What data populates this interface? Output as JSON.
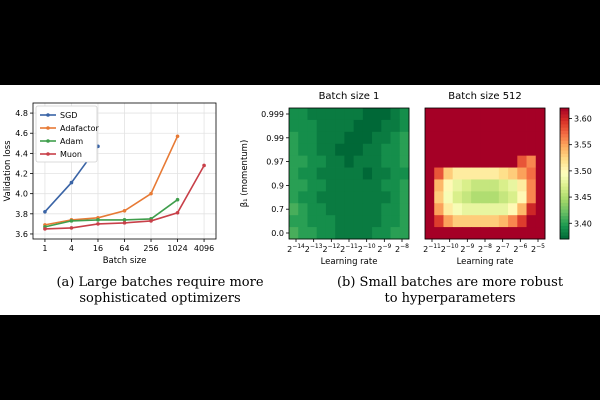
{
  "chart_data": [
    {
      "type": "line",
      "xlabel": "Batch size",
      "ylabel": "Validation loss",
      "x": [
        1,
        4,
        16,
        64,
        256,
        1024,
        4096
      ],
      "x_tick_labels": [
        "1",
        "4",
        "16",
        "64",
        "256",
        "1024",
        "4096"
      ],
      "x_scale": "log2",
      "ylim": [
        3.55,
        4.9
      ],
      "y_ticks": [
        3.6,
        3.8,
        4.0,
        4.2,
        4.4,
        4.6,
        4.8
      ],
      "y_tick_labels": [
        "3.6",
        "3.8",
        "4.0",
        "4.2",
        "4.4",
        "4.6",
        "4.8"
      ],
      "grid": true,
      "legend_position": "top-left",
      "series": [
        {
          "name": "SGD",
          "color": "#3a64a6",
          "x": [
            1,
            4,
            16
          ],
          "values": [
            3.82,
            4.11,
            4.47
          ]
        },
        {
          "name": "Adafactor",
          "color": "#e77a35",
          "x": [
            1,
            4,
            16,
            64,
            256,
            1024
          ],
          "values": [
            3.69,
            3.74,
            3.76,
            3.83,
            4.0,
            4.57
          ]
        },
        {
          "name": "Adam",
          "color": "#3f9e4c",
          "x": [
            1,
            4,
            16,
            64,
            256,
            1024
          ],
          "values": [
            3.67,
            3.73,
            3.74,
            3.74,
            3.75,
            3.94
          ]
        },
        {
          "name": "Muon",
          "color": "#c84049",
          "x": [
            1,
            4,
            16,
            64,
            256,
            1024,
            4096
          ],
          "values": [
            3.65,
            3.66,
            3.7,
            3.71,
            3.73,
            3.81,
            4.28
          ]
        }
      ]
    },
    {
      "type": "heatmap",
      "title": "Batch size 1",
      "xlabel": "Learning rate",
      "ylabel": "β₁ (momentum)",
      "x_tick_labels": [
        "-14",
        "-13",
        "-12",
        "-11",
        "-10",
        "-9",
        "-8"
      ],
      "y_tick_labels": [
        "0.999",
        "0.99",
        "0.97",
        "0.9",
        "0.7",
        "0.0"
      ],
      "values": [
        [
          3.39,
          3.39,
          3.38,
          3.38,
          3.38,
          3.38,
          3.38,
          3.38,
          3.37,
          3.37,
          3.37,
          3.38,
          3.39
        ],
        [
          3.39,
          3.39,
          3.39,
          3.38,
          3.38,
          3.38,
          3.38,
          3.37,
          3.37,
          3.37,
          3.38,
          3.38,
          3.39
        ],
        [
          3.4,
          3.39,
          3.39,
          3.38,
          3.38,
          3.38,
          3.37,
          3.37,
          3.37,
          3.38,
          3.38,
          3.39,
          3.4
        ],
        [
          3.4,
          3.39,
          3.39,
          3.38,
          3.38,
          3.37,
          3.37,
          3.37,
          3.38,
          3.38,
          3.39,
          3.39,
          3.4
        ],
        [
          3.4,
          3.4,
          3.39,
          3.39,
          3.38,
          3.38,
          3.37,
          3.38,
          3.38,
          3.38,
          3.39,
          3.39,
          3.4
        ],
        [
          3.4,
          3.39,
          3.39,
          3.38,
          3.38,
          3.38,
          3.38,
          3.38,
          3.37,
          3.38,
          3.38,
          3.39,
          3.39
        ],
        [
          3.4,
          3.4,
          3.39,
          3.39,
          3.38,
          3.38,
          3.38,
          3.38,
          3.38,
          3.38,
          3.39,
          3.39,
          3.4
        ],
        [
          3.4,
          3.39,
          3.39,
          3.38,
          3.38,
          3.38,
          3.38,
          3.38,
          3.38,
          3.38,
          3.38,
          3.39,
          3.4
        ],
        [
          3.41,
          3.4,
          3.39,
          3.39,
          3.38,
          3.38,
          3.38,
          3.38,
          3.38,
          3.38,
          3.39,
          3.39,
          3.4
        ],
        [
          3.4,
          3.4,
          3.39,
          3.39,
          3.39,
          3.38,
          3.38,
          3.38,
          3.38,
          3.38,
          3.39,
          3.39,
          3.4
        ],
        [
          3.41,
          3.4,
          3.4,
          3.39,
          3.39,
          3.38,
          3.38,
          3.38,
          3.38,
          3.39,
          3.39,
          3.4,
          3.4
        ]
      ]
    },
    {
      "type": "heatmap",
      "title": "Batch size 512",
      "xlabel": "Learning rate",
      "x_tick_labels": [
        "-11",
        "-10",
        "-9",
        "-8",
        "-7",
        "-6",
        "-5"
      ],
      "values": [
        [
          3.62,
          3.62,
          3.62,
          3.62,
          3.62,
          3.62,
          3.62,
          3.62,
          3.62,
          3.62,
          3.62,
          3.62,
          3.62
        ],
        [
          3.62,
          3.62,
          3.62,
          3.62,
          3.62,
          3.62,
          3.62,
          3.62,
          3.62,
          3.62,
          3.62,
          3.62,
          3.62
        ],
        [
          3.62,
          3.62,
          3.62,
          3.62,
          3.62,
          3.62,
          3.62,
          3.62,
          3.62,
          3.62,
          3.62,
          3.62,
          3.62
        ],
        [
          3.62,
          3.62,
          3.62,
          3.62,
          3.62,
          3.62,
          3.62,
          3.62,
          3.62,
          3.62,
          3.62,
          3.62,
          3.62
        ],
        [
          3.62,
          3.62,
          3.62,
          3.62,
          3.62,
          3.62,
          3.62,
          3.62,
          3.62,
          3.62,
          3.58,
          3.56,
          3.62
        ],
        [
          3.62,
          3.58,
          3.53,
          3.51,
          3.51,
          3.51,
          3.51,
          3.51,
          3.52,
          3.53,
          3.55,
          3.57,
          3.62
        ],
        [
          3.62,
          3.54,
          3.5,
          3.48,
          3.47,
          3.46,
          3.46,
          3.46,
          3.47,
          3.48,
          3.51,
          3.56,
          3.62
        ],
        [
          3.62,
          3.53,
          3.49,
          3.47,
          3.46,
          3.45,
          3.45,
          3.45,
          3.46,
          3.47,
          3.5,
          3.56,
          3.62
        ],
        [
          3.62,
          3.55,
          3.51,
          3.49,
          3.48,
          3.48,
          3.48,
          3.48,
          3.48,
          3.5,
          3.54,
          3.6,
          3.62
        ],
        [
          3.62,
          3.59,
          3.55,
          3.53,
          3.53,
          3.53,
          3.53,
          3.53,
          3.54,
          3.56,
          3.59,
          3.62,
          3.62
        ],
        [
          3.62,
          3.62,
          3.62,
          3.62,
          3.62,
          3.62,
          3.62,
          3.62,
          3.62,
          3.62,
          3.62,
          3.62,
          3.62
        ]
      ],
      "colorbar": {
        "ticks": [
          3.4,
          3.45,
          3.5,
          3.55,
          3.6
        ],
        "tick_labels": [
          "3.40",
          "3.45",
          "3.50",
          "3.55",
          "3.60"
        ],
        "range": [
          3.37,
          3.62
        ],
        "colormap": "RdYlGn_r"
      }
    }
  ],
  "captions": {
    "left": "(a) Large batches require more\nsophisticated optimizers",
    "right": "(b) Small batches are more robust\nto hyperparameters"
  }
}
